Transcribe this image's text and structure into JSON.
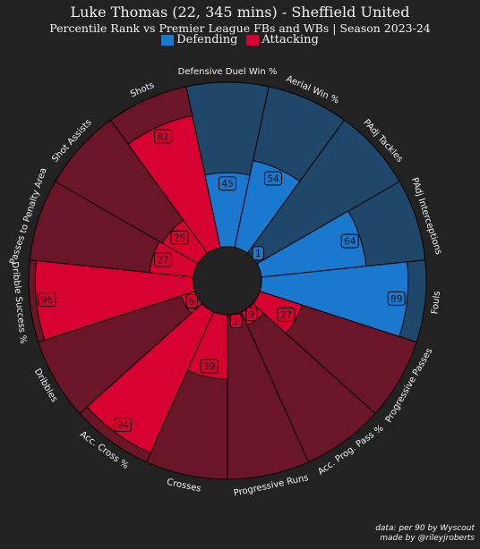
{
  "title": "Luke Thomas (22, 345 mins) - Sheffield United",
  "subtitle": "Percentile Rank vs Premier League FBs and WBs | Season 2023-24",
  "legend": [
    {
      "label": "Defending",
      "color": "#1a78cf"
    },
    {
      "label": "Attacking",
      "color": "#d70232"
    }
  ],
  "colors": {
    "background": "#222222",
    "text": "#f2f2f2",
    "defending_bar": "#1a78cf",
    "defending_bg": "#1f4769",
    "attacking_bar": "#d70232",
    "attacking_bg": "#6b1628",
    "center": "#222222"
  },
  "chart_data": {
    "type": "polar-bar",
    "title": "Luke Thomas (22, 345 mins) - Sheffield United",
    "subtitle": "Percentile Rank vs Premier League FBs and WBs | Season 2023-24",
    "range": [
      0,
      100
    ],
    "categories": [
      "Defensive Duel Win %",
      "Aerial Win %",
      "PAdj Tackles",
      "PAdj Interceptions",
      "Fouls",
      "Progressive Passes",
      "Acc. Prog. Pass %",
      "Progressive Runs",
      "Crosses",
      "Acc. Cross %",
      "Dribbles",
      "Dribble Success %",
      "Passes to Penalty Area",
      "Shot Assists",
      "Shots"
    ],
    "values": [
      45,
      54,
      1,
      64,
      89,
      27,
      9,
      1,
      39,
      94,
      9,
      96,
      27,
      25,
      82
    ],
    "groups": [
      "Defending",
      "Defending",
      "Defending",
      "Defending",
      "Defending",
      "Attacking",
      "Attacking",
      "Attacking",
      "Attacking",
      "Attacking",
      "Attacking",
      "Attacking",
      "Attacking",
      "Attacking",
      "Attacking"
    ],
    "series": [
      {
        "name": "Defending",
        "color": "#1a78cf"
      },
      {
        "name": "Attacking",
        "color": "#d70232"
      }
    ]
  },
  "footer": {
    "line1": "data: per 90 by Wyscout",
    "line2": "made by @rileyjroberts"
  }
}
